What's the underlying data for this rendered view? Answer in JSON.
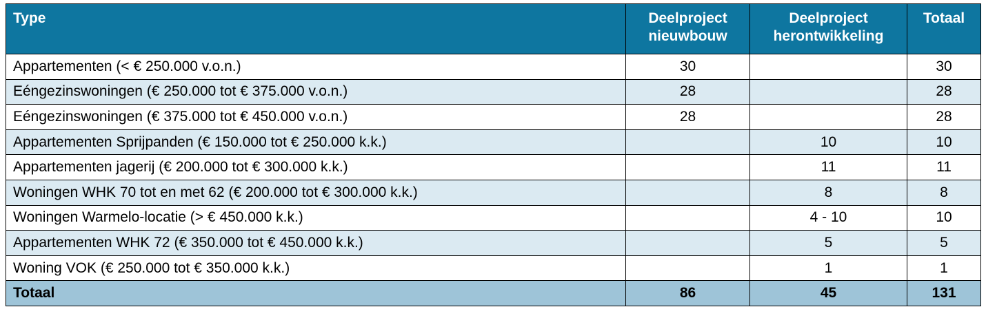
{
  "table": {
    "header": [
      "Type",
      "Deelproject nieuwbouw",
      "Deelproject herontwikkeling",
      "Totaal"
    ],
    "rows": [
      [
        "Appartementen (< € 250.000 v.o.n.)",
        30,
        null,
        30
      ],
      [
        "Eéngezinswoningen (€ 250.000 tot € 375.000 v.o.n.)",
        28,
        null,
        28
      ],
      [
        "Eéngezinswoningen (€ 375.000 tot € 450.000 v.o.n.)",
        28,
        null,
        28
      ],
      [
        "Appartementen Sprijpanden (€ 150.000 tot € 250.000 k.k.)",
        null,
        10,
        10
      ],
      [
        "Appartementen jagerij (€ 200.000 tot € 300.000 k.k.)",
        null,
        11,
        11
      ],
      [
        "Woningen WHK 70 tot en met 62 (€ 200.000 tot € 300.000 k.k.)",
        null,
        8,
        8
      ],
      [
        "Woningen Warmelo-locatie (> € 450.000 k.k.)",
        null,
        "4 - 10",
        10
      ],
      [
        "Appartementen WHK 72 (€ 350.000 tot € 450.000 k.k.)",
        null,
        5,
        5
      ],
      [
        "Woning VOK (€ 250.000 tot € 350.000 k.k.)",
        null,
        1,
        1
      ]
    ],
    "total": [
      "Totaal",
      86,
      45,
      131
    ]
  }
}
